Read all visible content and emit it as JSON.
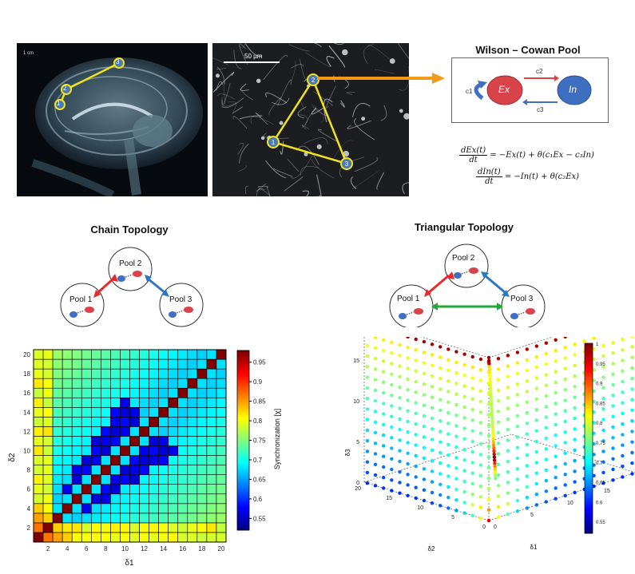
{
  "mri": {
    "scale_label": "1 cm",
    "nodes": [
      "1",
      "2",
      "3"
    ]
  },
  "micro": {
    "scale_label": "50 µm",
    "nodes": [
      "1",
      "2",
      "3"
    ]
  },
  "wc": {
    "title": "Wilson – Cowan Pool",
    "ex": "Ex",
    "in": "In",
    "c1": "c1",
    "c2": "c2",
    "c3": "c3"
  },
  "equations": {
    "eq1_num": "dEx(t)",
    "eq1_den": "dt",
    "eq1_rhs": "= −Ex(t) + θ(c₁Ex − c₃In)",
    "eq2_num": "dIn(t)",
    "eq2_den": "dt",
    "eq2_rhs": "= −In(t) + θ(c₂Ex)"
  },
  "chain": {
    "title": "Chain Topology",
    "pools": [
      "Pool 1",
      "Pool 2",
      "Pool 3"
    ]
  },
  "triangular": {
    "title": "Triangular Topology",
    "pools": [
      "Pool 1",
      "Pool 2",
      "Pool 3"
    ]
  },
  "colors": {
    "red_arrow": "#e82a2a",
    "blue_arrow": "#2b78c5",
    "green_arrow": "#22a83a",
    "orange_arrow": "#f39a1a",
    "node_yellow": "#f2e21a",
    "ex_pool": "#d9444a",
    "in_pool": "#3f6fc0"
  },
  "chart_data": [
    {
      "type": "heatmap",
      "xlabel": "δ1",
      "ylabel": "δ2",
      "colorbar_label": "Synchronization [χ]",
      "x_ticks": [
        "2",
        "4",
        "6",
        "8",
        "10",
        "12",
        "14",
        "16",
        "18",
        "20"
      ],
      "y_ticks": [
        "2",
        "4",
        "6",
        "8",
        "10",
        "12",
        "14",
        "16",
        "18",
        "20"
      ],
      "colorbar_ticks": [
        "0.55",
        "0.6",
        "0.65",
        "0.7",
        "0.75",
        "0.8",
        "0.85",
        "0.9",
        "0.95"
      ],
      "xlim": [
        1,
        20
      ],
      "ylim": [
        1,
        20
      ],
      "clim": [
        0.52,
        0.98
      ]
    },
    {
      "type": "scatter",
      "xlabel": "δ1",
      "ylabel": "δ3",
      "zlabel": "δ2",
      "x_ticks": [
        "0",
        "5",
        "10",
        "15",
        "20"
      ],
      "y_ticks": [
        "0",
        "5",
        "10",
        "15",
        "20"
      ],
      "z_ticks": [
        "0",
        "5",
        "10",
        "15",
        "20"
      ],
      "colorbar_ticks": [
        "0.55",
        "0.6",
        "0.65",
        "0.7",
        "0.75",
        "0.8",
        "0.85",
        "0.9",
        "0.95",
        "1"
      ],
      "clim": [
        0.52,
        1.0
      ]
    }
  ]
}
